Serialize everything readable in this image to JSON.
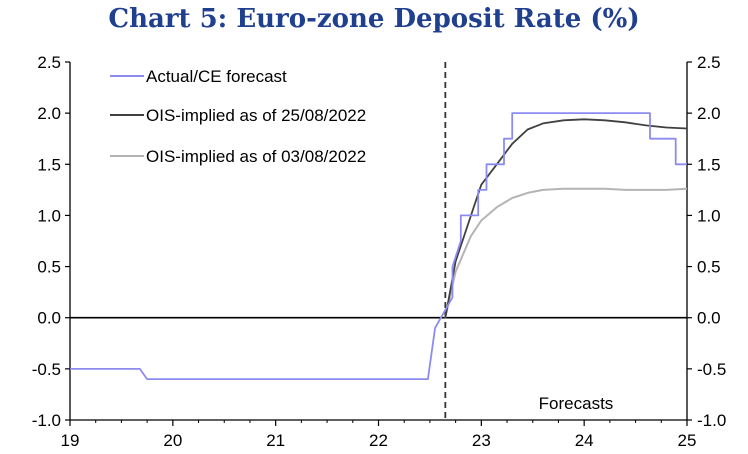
{
  "chart_data": {
    "type": "line",
    "title": "Chart 5: Euro-zone Deposit Rate (%)",
    "xlim": [
      19,
      25
    ],
    "ylim": [
      -1.0,
      2.5
    ],
    "x_ticks": [
      "19",
      "20",
      "21",
      "22",
      "23",
      "24",
      "25"
    ],
    "y_ticks_left": [
      "2.5",
      "2.0",
      "1.5",
      "1.0",
      "0.5",
      "0.0",
      "-0.5",
      "-1.0"
    ],
    "y_ticks_right": [
      "2.5",
      "2.0",
      "1.5",
      "1.0",
      "0.5",
      "0.0",
      "-0.5",
      "-1.0"
    ],
    "forecast_start_x": 22.65,
    "annotation": "Forecasts",
    "legend_position": "top-left",
    "colors": {
      "actual": "#8c8cf0",
      "ois_25": "#404040",
      "ois_03": "#b4b4b4",
      "title": "#1f3f8f"
    },
    "series": [
      {
        "name": "Actual/CE forecast",
        "x": [
          19.0,
          19.68,
          19.75,
          22.48,
          22.55,
          22.72,
          22.72,
          22.8,
          22.8,
          22.97,
          22.97,
          23.05,
          23.05,
          23.22,
          23.22,
          23.3,
          23.3,
          23.39,
          23.39,
          24.64,
          24.64,
          24.72,
          24.72,
          24.89,
          24.89,
          25.0
        ],
        "y": [
          -0.5,
          -0.5,
          -0.6,
          -0.6,
          -0.1,
          0.2,
          0.5,
          0.75,
          1.0,
          1.0,
          1.25,
          1.25,
          1.5,
          1.5,
          1.75,
          1.75,
          2.0,
          2.0,
          2.0,
          2.0,
          1.75,
          1.75,
          1.75,
          1.75,
          1.5,
          1.5
        ]
      },
      {
        "name": "OIS-implied as of 25/08/2022",
        "x": [
          22.65,
          22.75,
          22.9,
          23.0,
          23.15,
          23.3,
          23.45,
          23.6,
          23.8,
          24.0,
          24.2,
          24.4,
          24.6,
          24.8,
          25.0
        ],
        "y": [
          0.0,
          0.55,
          1.0,
          1.3,
          1.5,
          1.7,
          1.84,
          1.9,
          1.93,
          1.94,
          1.93,
          1.91,
          1.88,
          1.86,
          1.85
        ]
      },
      {
        "name": "OIS-implied as of 03/08/2022",
        "x": [
          22.65,
          22.75,
          22.9,
          23.0,
          23.15,
          23.3,
          23.45,
          23.6,
          23.8,
          24.0,
          24.2,
          24.4,
          24.6,
          24.8,
          25.0
        ],
        "y": [
          0.0,
          0.45,
          0.8,
          0.95,
          1.08,
          1.17,
          1.22,
          1.25,
          1.26,
          1.26,
          1.26,
          1.25,
          1.25,
          1.25,
          1.26
        ]
      }
    ]
  }
}
